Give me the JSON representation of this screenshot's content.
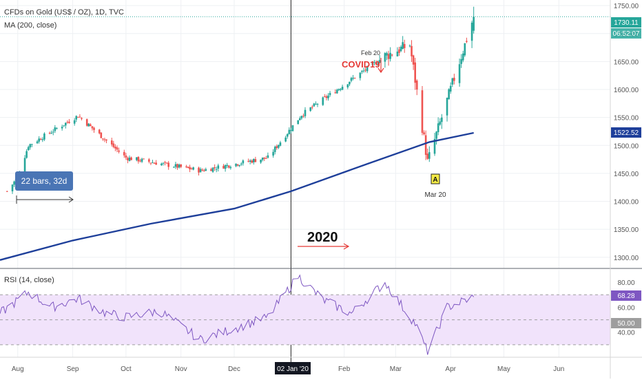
{
  "header": {
    "symbol": "CFDs on Gold (US$ / OZ), 1D, TVC",
    "ma_label": "MA (200, close)",
    "rsi_label": "RSI (14, close)"
  },
  "colors": {
    "up": "#26a69a",
    "down": "#ef5350",
    "ma": "#1e3f9a",
    "rsi_line": "#7e57c2",
    "rsi_band": "#f1e3fb",
    "annotation_red": "#e53935",
    "measure_box": "#4a75b5",
    "price_box": "#1e3f9a",
    "last_price_box": "#26a69a"
  },
  "price_axis": {
    "ticks": [
      "1750.00",
      "1700.00",
      "1650.00",
      "1600.00",
      "1550.00",
      "1500.00",
      "1450.00",
      "1400.00",
      "1350.00",
      "1300.00"
    ],
    "last_price": "1730.11",
    "countdown": "06:52:07",
    "ma_value": "1522.52"
  },
  "rsi_axis": {
    "ticks": [
      "80.00",
      "60.00",
      "40.00"
    ],
    "current": "68.28",
    "midline": "50.00"
  },
  "time_axis": {
    "labels": [
      "Aug",
      "Sep",
      "Oct",
      "Nov",
      "Dec",
      "Feb",
      "Mar",
      "Apr",
      "May",
      "Jun"
    ],
    "crosshair_label": "02 Jan '20"
  },
  "annotations": {
    "measure": "22 bars, 32d",
    "year": "2020",
    "covid": "COVID19",
    "feb_label": "Feb 20",
    "marker": "A",
    "mar_label": "Mar 20"
  },
  "chart_data": [
    {
      "type": "candlestick",
      "title": "CFDs on Gold (US$ / OZ), 1D, TVC",
      "x_range": [
        "2019-07-22",
        "2020-06-30"
      ],
      "ylim": [
        1280,
        1760
      ],
      "grid": true,
      "key_prices": [
        {
          "date": "2019-07-26",
          "close": 1418
        },
        {
          "date": "2019-08-01",
          "close": 1443
        },
        {
          "date": "2019-08-07",
          "close": 1500
        },
        {
          "date": "2019-09-04",
          "close": 1553
        },
        {
          "date": "2019-10-01",
          "close": 1478
        },
        {
          "date": "2019-11-12",
          "close": 1455
        },
        {
          "date": "2019-12-20",
          "close": 1478
        },
        {
          "date": "2020-01-08",
          "close": 1555
        },
        {
          "date": "2020-02-24",
          "close": 1660
        },
        {
          "date": "2020-03-09",
          "close": 1680
        },
        {
          "date": "2020-03-19",
          "close": 1470
        },
        {
          "date": "2020-04-14",
          "close": 1730.11
        }
      ],
      "series": [
        {
          "name": "MA (200, close)",
          "type": "line",
          "x": [
            "2019-07-22",
            "2019-09-01",
            "2019-10-15",
            "2019-12-01",
            "2020-01-02",
            "2020-02-15",
            "2020-03-20",
            "2020-04-14"
          ],
          "values": [
            1295,
            1330,
            1360,
            1387,
            1418,
            1468,
            1506,
            1522.52
          ]
        }
      ]
    },
    {
      "type": "line",
      "title": "RSI (14, close)",
      "ylim": [
        20,
        90
      ],
      "bands": [
        30,
        50,
        70
      ],
      "series": [
        {
          "name": "RSI (14, close)",
          "x": [
            "2019-07-22",
            "2019-08-07",
            "2019-08-20",
            "2019-09-04",
            "2019-09-20",
            "2019-10-01",
            "2019-10-20",
            "2019-11-12",
            "2019-12-01",
            "2019-12-20",
            "2020-01-06",
            "2020-01-20",
            "2020-02-05",
            "2020-02-24",
            "2020-03-06",
            "2020-03-12",
            "2020-03-19",
            "2020-03-30",
            "2020-04-14"
          ],
          "values": [
            55,
            72,
            60,
            67,
            55,
            52,
            57,
            34,
            43,
            52,
            85,
            66,
            55,
            80,
            58,
            47,
            24,
            60,
            68.28
          ]
        }
      ]
    }
  ]
}
